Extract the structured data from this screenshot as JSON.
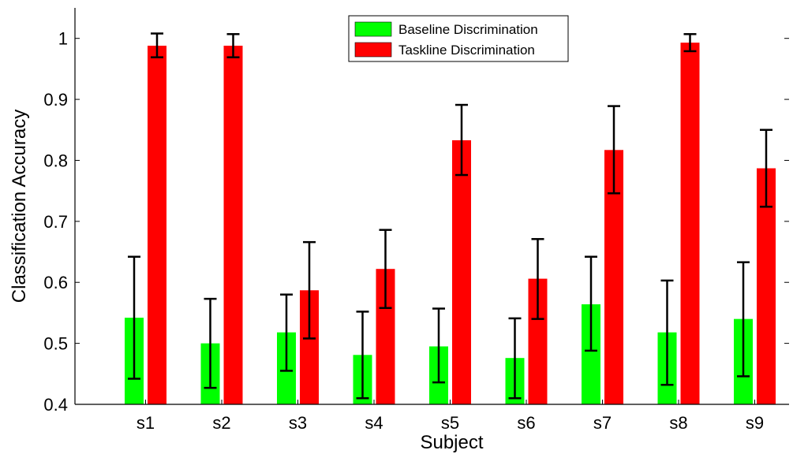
{
  "chart_data": {
    "type": "bar",
    "xlabel": "Subject",
    "ylabel": "Classification Accuracy",
    "ylim": [
      0.4,
      1.05
    ],
    "yticks": [
      0.4,
      0.5,
      0.6,
      0.7,
      0.8,
      0.9,
      1
    ],
    "ytick_labels": [
      "0.4",
      "0.5",
      "0.6",
      "0.7",
      "0.8",
      "0.9",
      "1"
    ],
    "categories": [
      "s1",
      "s2",
      "s3",
      "s4",
      "s5",
      "s6",
      "s7",
      "s8",
      "s9"
    ],
    "grid": false,
    "legend_position": "top-center",
    "series": [
      {
        "name": "Baseline Discrimination",
        "color": "#00ff00",
        "values": [
          0.542,
          0.5,
          0.518,
          0.481,
          0.495,
          0.476,
          0.564,
          0.518,
          0.54
        ],
        "err_low": [
          0.442,
          0.427,
          0.455,
          0.41,
          0.436,
          0.41,
          0.488,
          0.432,
          0.446
        ],
        "err_high": [
          0.642,
          0.573,
          0.58,
          0.552,
          0.557,
          0.541,
          0.642,
          0.603,
          0.633
        ]
      },
      {
        "name": "Taskline Discrimination",
        "color": "#ff0000",
        "values": [
          0.988,
          0.988,
          0.587,
          0.622,
          0.833,
          0.606,
          0.817,
          0.993,
          0.787
        ],
        "err_low": [
          0.969,
          0.969,
          0.508,
          0.558,
          0.776,
          0.54,
          0.746,
          0.979,
          0.724
        ],
        "err_high": [
          1.008,
          1.007,
          0.666,
          0.686,
          0.891,
          0.671,
          0.889,
          1.007,
          0.85
        ]
      }
    ]
  }
}
